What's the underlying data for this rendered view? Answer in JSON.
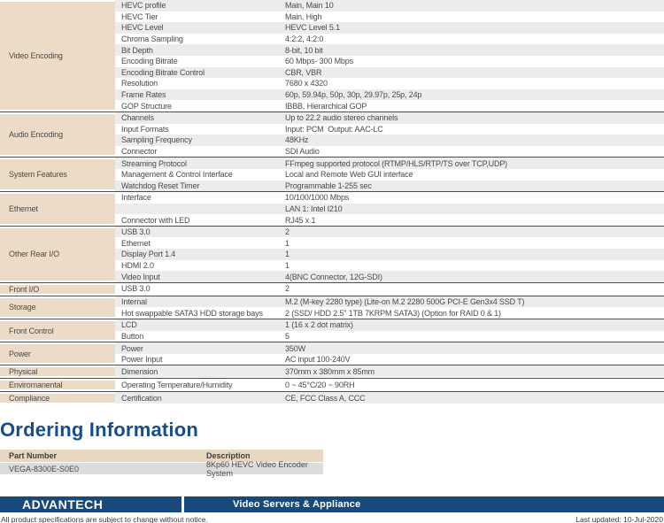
{
  "colors": {
    "category_beige": "#ECDCC7",
    "stripe_gray": "#ECECEC",
    "order_row_gray": "#DCDCDC",
    "divider": "#4E4E4E",
    "heading_blue": "#164E8C",
    "footer_navy": "#17497B"
  },
  "spec_table": {
    "sections": [
      {
        "category": "Video Encoding",
        "rows": [
          {
            "label": "HEVC profile",
            "value": "Main, Main 10"
          },
          {
            "label": "HEVC Tier",
            "value": "Main, High"
          },
          {
            "label": "HEVC Level",
            "value": "HEVC Level 5.1"
          },
          {
            "label": "Chroma Sampling",
            "value": "4:2:2, 4:2:0"
          },
          {
            "label": "Bit Depth",
            "value": "8-bit, 10 bit"
          },
          {
            "label": "Encoding Bitrate",
            "value": "60 Mbps- 300 Mbps"
          },
          {
            "label": "Encoding Bitrate Control",
            "value": "CBR, VBR"
          },
          {
            "label": "Resolution",
            "value": "7680 x 4320"
          },
          {
            "label": "Frame Rates",
            "value": "60p, 59.94p, 50p, 30p, 29.97p, 25p, 24p"
          },
          {
            "label": "GOP Structure",
            "value": "IBBB, Hierarchical GOP"
          }
        ]
      },
      {
        "category": "Audio Encoding",
        "rows": [
          {
            "label": "Channels",
            "value": "Up to 22.2 audio stereo channels"
          },
          {
            "label": "Input Formats",
            "value": "Input: PCM  Output: AAC-LC"
          },
          {
            "label": "Sampling Frequency",
            "value": "48KHz"
          },
          {
            "label": "Connector",
            "value": "SDI Audio"
          }
        ]
      },
      {
        "category": "System Features",
        "rows": [
          {
            "label": "Streaming Protocol",
            "value": "FFmpeg supported protocol (RTMP/HLS/RTP/TS over TCP,UDP)"
          },
          {
            "label": "Management & Control Interface",
            "value": "Local and Remote Web GUI interface"
          },
          {
            "label": "Watchdog Reset Timer",
            "value": "Programmable 1-255 sec"
          }
        ]
      },
      {
        "category": "Ethernet",
        "rows": [
          {
            "label": "Interface",
            "value": "10/100/1000 Mbps"
          },
          {
            "label": "",
            "value": "LAN 1: Intel I210"
          },
          {
            "label": "Connector with LED",
            "value": "RJ45 x 1"
          }
        ]
      },
      {
        "category": "Other Rear I/O",
        "rows": [
          {
            "label": "USB 3.0",
            "value": "2"
          },
          {
            "label": "Ethernet",
            "value": "1"
          },
          {
            "label": "Display Port 1.4",
            "value": "1"
          },
          {
            "label": "HDMI 2.0",
            "value": "1"
          },
          {
            "label": "Video Input",
            "value": "4(BNC Connector, 12G-SDI)"
          }
        ]
      },
      {
        "category": "Front I/O",
        "rows": [
          {
            "label": "USB 3.0",
            "value": "2"
          }
        ]
      },
      {
        "category": "Storage",
        "rows": [
          {
            "label": "Internal",
            "value": "M.2 (M-key 2280 type) (Lite-on M.2 2280 500G PCI-E Gen3x4 SSD T)"
          },
          {
            "label": "Hot swappable SATA3 HDD storage bays",
            "value": "2 (SSD/ HDD 2.5\" 1TB 7KRPM SATA3) (Option for RAID 0 & 1)"
          }
        ]
      },
      {
        "category": "Front Control",
        "rows": [
          {
            "label": "LCD",
            "value": "1 (16 x 2 dot matrix)"
          },
          {
            "label": "Button",
            "value": "5"
          }
        ]
      },
      {
        "category": "Power",
        "rows": [
          {
            "label": "Power",
            "value": "350W"
          },
          {
            "label": "Power Input",
            "value": "AC input 100-240V"
          }
        ]
      },
      {
        "category": "Physical",
        "rows": [
          {
            "label": "Dimension",
            "value": "370mm x 380mm x 85mm"
          }
        ]
      },
      {
        "category": "Enviromanental",
        "rows": [
          {
            "label": "Operating Temperature/Humidity",
            "value": "0 ~ 45°C/20 ~ 90RH"
          }
        ]
      },
      {
        "category": "Compliance",
        "rows": [
          {
            "label": "Certification",
            "value": "CE, FCC Class A, CCC"
          }
        ]
      }
    ]
  },
  "ordering": {
    "title": "Ordering Information",
    "columns": [
      "Part Number",
      "Description"
    ],
    "rows": [
      {
        "part_number": "VEGA-8300E-S0E0",
        "description": "8Kp60 HEVC Video Encoder System"
      }
    ]
  },
  "brand": {
    "logo_text": "ADVANTECH",
    "series_label": "Video Servers & Appliance"
  },
  "footer": {
    "disclaimer": "All product specifications are subject to change without notice.",
    "last_updated": "Last updated: 10-Jul-2020"
  }
}
